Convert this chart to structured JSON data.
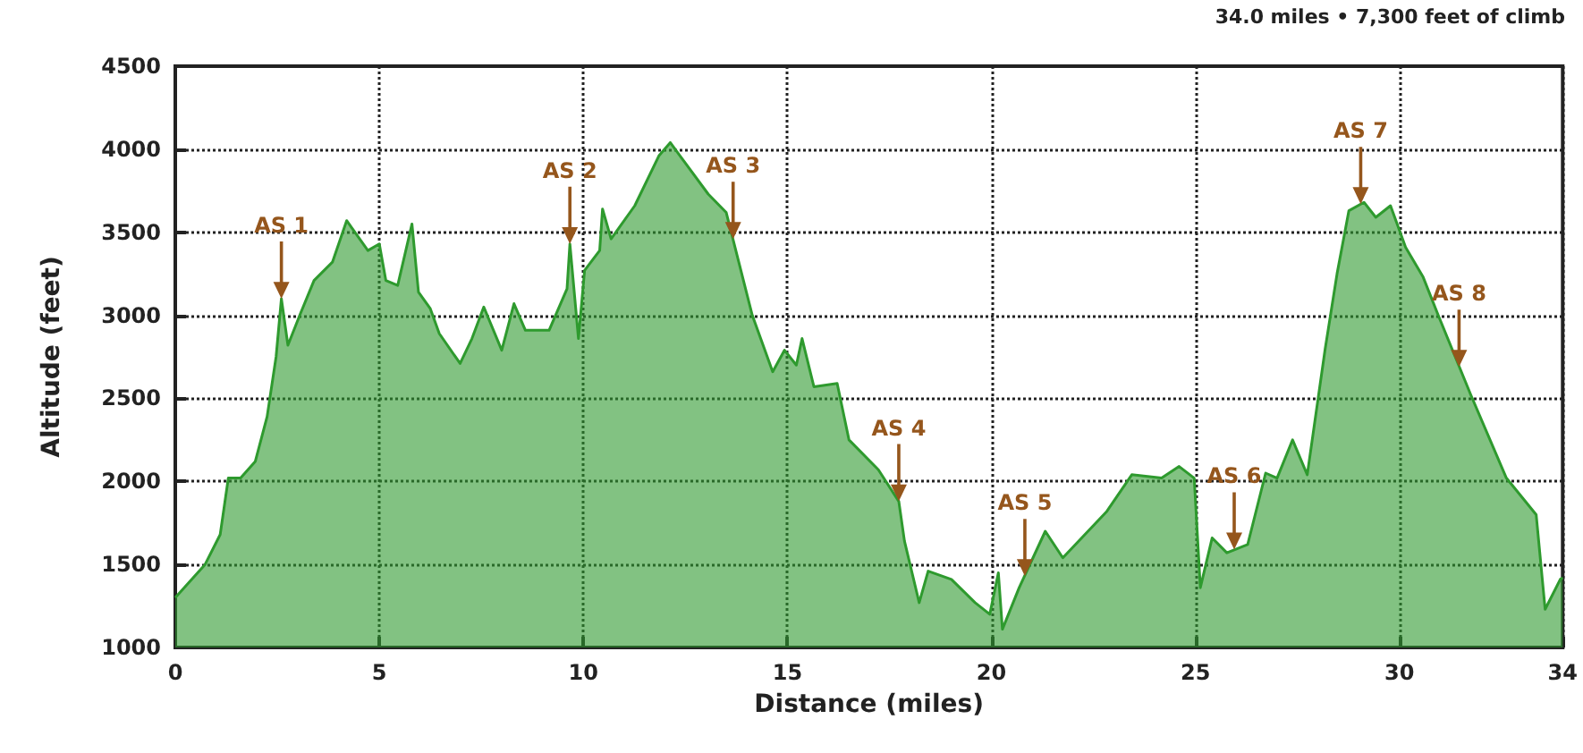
{
  "chart_data": {
    "type": "area",
    "subtitle": "34.0 miles • 7,300 feet of climb",
    "xlabel": "Distance (miles)",
    "ylabel": "Altitude (feet)",
    "xlim": [
      0,
      34
    ],
    "xticks": [
      0,
      5,
      10,
      15,
      20,
      25,
      30,
      34
    ],
    "ylim": [
      1000,
      4500
    ],
    "yticks": [
      1000,
      1500,
      2000,
      2500,
      3000,
      3500,
      4000,
      4500
    ],
    "grid": true,
    "series": [
      {
        "color": "#2e9a2e",
        "x": [
          0,
          0.73,
          1.1,
          1.3,
          1.6,
          1.96,
          2.25,
          2.47,
          2.6,
          2.76,
          3.05,
          3.4,
          3.85,
          4.2,
          4.72,
          5.0,
          5.16,
          5.45,
          5.8,
          5.96,
          6.25,
          6.47,
          6.98,
          7.27,
          7.56,
          8.0,
          8.3,
          8.58,
          9.16,
          9.6,
          9.67,
          9.88,
          10.03,
          10.4,
          10.47,
          10.68,
          11.26,
          11.85,
          12.13,
          13.06,
          13.5,
          14.14,
          14.64,
          14.93,
          15.22,
          15.36,
          15.65,
          16.22,
          16.51,
          17.23,
          17.73,
          17.87,
          18.23,
          18.45,
          19.02,
          19.6,
          19.96,
          20.17,
          20.27,
          20.68,
          21.32,
          21.75,
          22.83,
          23.44,
          24.17,
          24.6,
          24.97,
          25.12,
          25.41,
          25.77,
          26.28,
          26.72,
          27.0,
          27.38,
          27.74,
          28.18,
          28.47,
          28.76,
          29.13,
          29.42,
          29.78,
          30.15,
          30.58,
          30.95,
          31.75,
          32.62,
          33.35,
          33.57,
          33.94,
          34
        ],
        "values": [
          1300,
          1500,
          1680,
          2020,
          2020,
          2120,
          2390,
          2750,
          3100,
          2820,
          3000,
          3210,
          3320,
          3570,
          3390,
          3430,
          3210,
          3180,
          3550,
          3140,
          3040,
          2890,
          2710,
          2860,
          3050,
          2790,
          3070,
          2910,
          2910,
          3160,
          3430,
          2860,
          3270,
          3390,
          3640,
          3460,
          3660,
          3960,
          4040,
          3730,
          3620,
          3000,
          2660,
          2790,
          2700,
          2860,
          2570,
          2590,
          2250,
          2070,
          1880,
          1640,
          1270,
          1460,
          1410,
          1270,
          1200,
          1450,
          1110,
          1360,
          1700,
          1540,
          1820,
          2040,
          2020,
          2090,
          2020,
          1360,
          1660,
          1570,
          1620,
          2050,
          2020,
          2250,
          2040,
          2800,
          3250,
          3630,
          3680,
          3590,
          3660,
          3410,
          3230,
          3000,
          2520,
          2020,
          1800,
          1230,
          1410,
          1420
        ]
      }
    ],
    "annotations": [
      {
        "text": "AS 1",
        "x": 2.6,
        "y": 3100
      },
      {
        "text": "AS 2",
        "x": 9.67,
        "y": 3430
      },
      {
        "text": "AS 3",
        "x": 13.67,
        "y": 3460
      },
      {
        "text": "AS 4",
        "x": 17.73,
        "y": 1880
      },
      {
        "text": "AS 5",
        "x": 20.82,
        "y": 1430
      },
      {
        "text": "AS 6",
        "x": 25.95,
        "y": 1590
      },
      {
        "text": "AS 7",
        "x": 29.05,
        "y": 3670
      },
      {
        "text": "AS 8",
        "x": 31.46,
        "y": 2690
      }
    ]
  }
}
